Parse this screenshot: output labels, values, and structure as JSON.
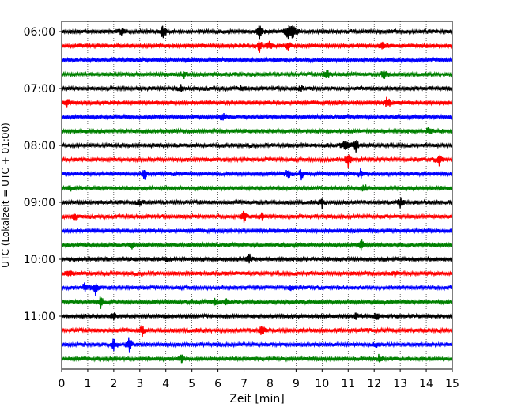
{
  "chart_data": {
    "type": "line",
    "title": "",
    "xlabel": "Zeit  [min]",
    "ylabel": "UTC (Lokalzeit = UTC + 01:00)",
    "xlim": [
      0,
      15
    ],
    "x_ticks": [
      "0",
      "1",
      "2",
      "3",
      "4",
      "5",
      "6",
      "7",
      "8",
      "9",
      "10",
      "11",
      "12",
      "13",
      "14",
      "15"
    ],
    "y_tick_labels": [
      "06:00",
      "07:00",
      "08:00",
      "09:00",
      "10:00",
      "11:00"
    ],
    "grid": "vertical-dotted",
    "trace_interval_minutes": 15,
    "start_time": "06:00",
    "trace_colors": [
      "#000000",
      "#ff0000",
      "#0000ff",
      "#008000"
    ],
    "traces": [
      {
        "time": "06:00",
        "color": "#000000",
        "events": [
          [
            2.3,
            0.5
          ],
          [
            3.9,
            1.1
          ],
          [
            7.6,
            0.9
          ],
          [
            8.7,
            1.3
          ],
          [
            8.9,
            1.4
          ]
        ]
      },
      {
        "time": "06:15",
        "color": "#ff0000",
        "events": [
          [
            7.6,
            0.8
          ],
          [
            8.0,
            0.6
          ],
          [
            8.7,
            0.6
          ],
          [
            12.3,
            0.5
          ]
        ]
      },
      {
        "time": "06:30",
        "color": "#0000ff",
        "events": [
          [
            4.8,
            0.3
          ],
          [
            8.2,
            0.3
          ]
        ]
      },
      {
        "time": "06:45",
        "color": "#008000",
        "events": [
          [
            4.7,
            0.5
          ],
          [
            10.2,
            0.6
          ],
          [
            12.4,
            0.8
          ]
        ]
      },
      {
        "time": "07:00",
        "color": "#000000",
        "events": [
          [
            4.6,
            0.5
          ],
          [
            6.9,
            0.4
          ],
          [
            9.2,
            0.4
          ]
        ]
      },
      {
        "time": "07:15",
        "color": "#ff0000",
        "events": [
          [
            0.2,
            0.6
          ],
          [
            12.5,
            0.9
          ]
        ]
      },
      {
        "time": "07:30",
        "color": "#0000ff",
        "events": [
          [
            6.2,
            0.6
          ]
        ]
      },
      {
        "time": "07:45",
        "color": "#008000",
        "events": [
          [
            14.1,
            0.5
          ]
        ]
      },
      {
        "time": "08:00",
        "color": "#000000",
        "events": [
          [
            10.9,
            1.0
          ],
          [
            11.3,
            0.8
          ]
        ]
      },
      {
        "time": "08:15",
        "color": "#ff0000",
        "events": [
          [
            11.0,
            0.9
          ],
          [
            14.5,
            0.8
          ]
        ]
      },
      {
        "time": "08:30",
        "color": "#0000ff",
        "events": [
          [
            3.2,
            0.8
          ],
          [
            8.7,
            0.8
          ],
          [
            9.2,
            0.7
          ],
          [
            11.5,
            0.7
          ]
        ]
      },
      {
        "time": "08:45",
        "color": "#008000",
        "events": [
          [
            0.3,
            0.5
          ],
          [
            11.6,
            0.7
          ]
        ]
      },
      {
        "time": "09:00",
        "color": "#000000",
        "events": [
          [
            3.0,
            0.4
          ],
          [
            10.0,
            0.7
          ],
          [
            13.0,
            0.8
          ]
        ]
      },
      {
        "time": "09:15",
        "color": "#ff0000",
        "events": [
          [
            0.5,
            0.6
          ],
          [
            7.0,
            0.7
          ],
          [
            7.7,
            0.4
          ]
        ]
      },
      {
        "time": "09:30",
        "color": "#0000ff",
        "events": [
          [
            15.0,
            0.5
          ]
        ]
      },
      {
        "time": "09:45",
        "color": "#008000",
        "events": [
          [
            2.7,
            0.4
          ],
          [
            11.5,
            0.6
          ]
        ]
      },
      {
        "time": "10:00",
        "color": "#000000",
        "events": [
          [
            4.0,
            0.4
          ],
          [
            7.2,
            0.8
          ]
        ]
      },
      {
        "time": "10:15",
        "color": "#ff0000",
        "events": [
          [
            0.3,
            0.5
          ],
          [
            12.8,
            0.4
          ]
        ]
      },
      {
        "time": "10:30",
        "color": "#0000ff",
        "events": [
          [
            0.9,
            0.7
          ],
          [
            1.3,
            0.8
          ],
          [
            8.8,
            0.5
          ]
        ]
      },
      {
        "time": "10:45",
        "color": "#008000",
        "events": [
          [
            1.5,
            0.9
          ],
          [
            5.9,
            0.5
          ],
          [
            6.3,
            0.4
          ]
        ]
      },
      {
        "time": "11:00",
        "color": "#000000",
        "events": [
          [
            2.0,
            0.8
          ],
          [
            11.3,
            0.5
          ],
          [
            12.1,
            0.4
          ]
        ]
      },
      {
        "time": "11:15",
        "color": "#ff0000",
        "events": [
          [
            3.1,
            0.7
          ],
          [
            7.7,
            0.8
          ]
        ]
      },
      {
        "time": "11:30",
        "color": "#0000ff",
        "events": [
          [
            2.0,
            0.9
          ],
          [
            2.6,
            0.9
          ],
          [
            12.1,
            0.5
          ]
        ]
      },
      {
        "time": "11:45",
        "color": "#008000",
        "events": [
          [
            4.6,
            0.6
          ],
          [
            12.2,
            0.5
          ]
        ]
      }
    ]
  }
}
